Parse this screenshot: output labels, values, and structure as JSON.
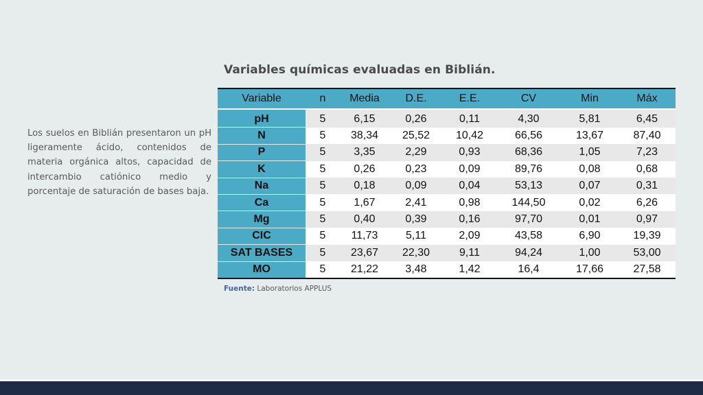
{
  "slide": {
    "title": "Variables químicas evaluadas en Biblián.",
    "description": "Los suelos en Biblián presentaron un pH ligeramente ácido, contenidos de materia orgánica altos, capacidad de intercambio catiónico medio y porcentaje de saturación de bases baja.",
    "source_label": "Fuente:",
    "source_text": " Laboratorios APPLUS"
  },
  "table": {
    "headers": [
      "Variable",
      "n",
      "Media",
      "D.E.",
      "E.E.",
      "CV",
      "Min",
      "Máx"
    ],
    "rows": [
      [
        "pH",
        "5",
        "6,15",
        "0,26",
        "0,11",
        "4,30",
        "5,81",
        "6,45"
      ],
      [
        "N",
        "5",
        "38,34",
        "25,52",
        "10,42",
        "66,56",
        "13,67",
        "87,40"
      ],
      [
        "P",
        "5",
        "3,35",
        "2,29",
        "0,93",
        "68,36",
        "1,05",
        "7,23"
      ],
      [
        "K",
        "5",
        "0,26",
        "0,23",
        "0,09",
        "89,76",
        "0,08",
        "0,68"
      ],
      [
        "Na",
        "5",
        "0,18",
        "0,09",
        "0,04",
        "53,13",
        "0,07",
        "0,31"
      ],
      [
        "Ca",
        "5",
        "1,67",
        "2,41",
        "0,98",
        "144,50",
        "0,02",
        "6,26"
      ],
      [
        "Mg",
        "5",
        "0,40",
        "0,39",
        "0,16",
        "97,70",
        "0,01",
        "0,97"
      ],
      [
        "CIC",
        "5",
        "11,73",
        "5,11",
        "2,09",
        "43,58",
        "6,90",
        "19,39"
      ],
      [
        "SAT BASES",
        "5",
        "23,67",
        "22,30",
        "9,11",
        "94,24",
        "1,00",
        "53,00"
      ],
      [
        "MO",
        "5",
        "21,22",
        "3,48",
        "1,42",
        "16,4",
        "17,66",
        "27,58"
      ]
    ]
  },
  "colors": {
    "header": "#4baac6",
    "bottom_bar": "#1f2a45",
    "background": "#e7ecec"
  }
}
